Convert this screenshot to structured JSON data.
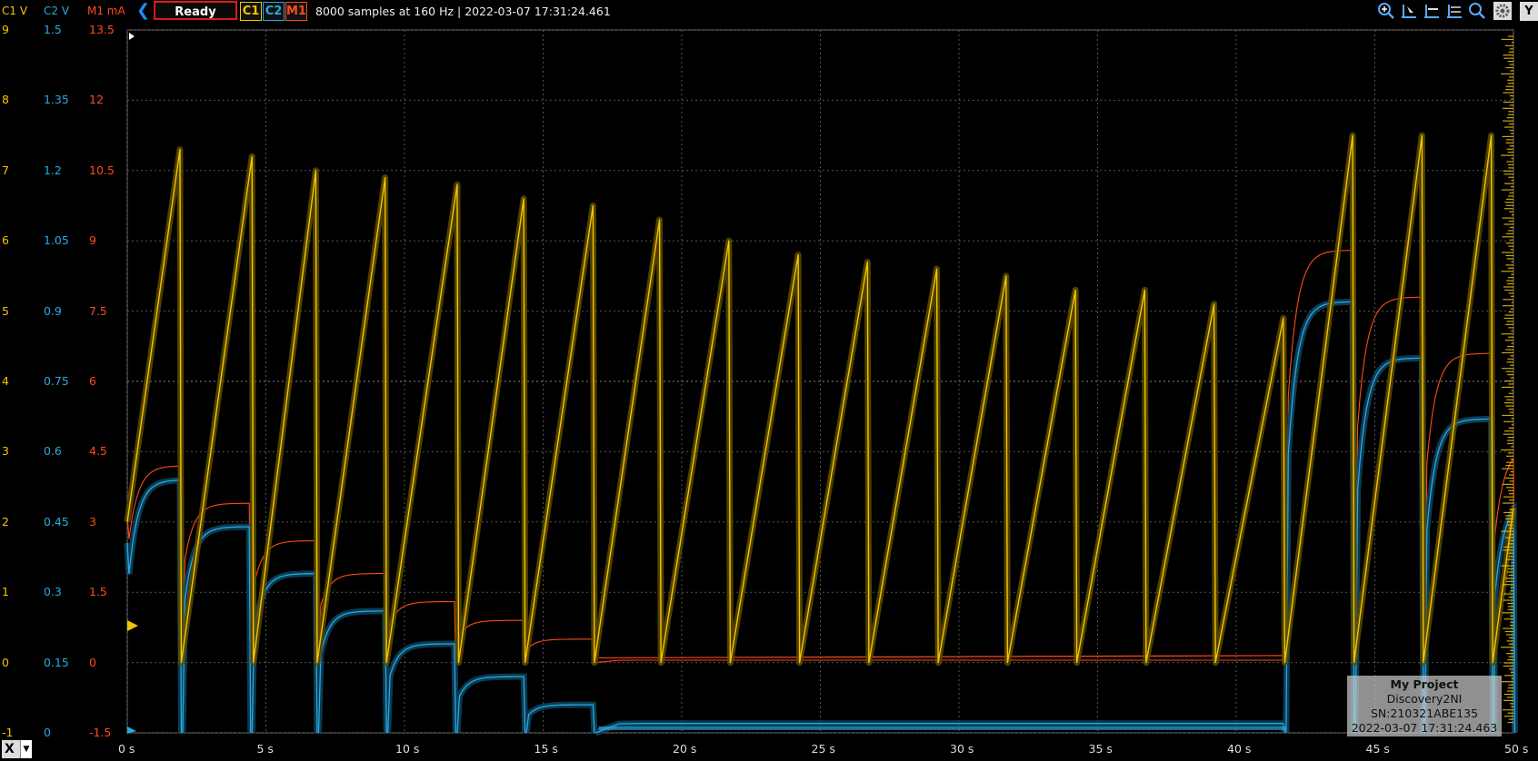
{
  "header": {
    "axis_c1": "C1 V",
    "axis_c2": "C2 V",
    "axis_m1": "M1 mA",
    "status": "Ready",
    "ch_c1": "C1",
    "ch_c2": "C2",
    "ch_m1": "M1",
    "info": "8000 samples at 160 Hz | 2022-03-07 17:31:24.461",
    "y_button": "Y"
  },
  "xaxis_button": "X",
  "device": {
    "project": "My Project",
    "device": "Discovery2NI",
    "serial": "SN:210321ABE135",
    "timestamp": "2022-03-07 17:31:24.463"
  },
  "colors": {
    "c1": "#f5c400",
    "c2": "#2aa8e0",
    "m1": "#ff4a1a",
    "grid": "#555555",
    "background": "#000000"
  },
  "yticks": {
    "c1": [
      "9",
      "8",
      "7",
      "6",
      "5",
      "4",
      "3",
      "2",
      "1",
      "0",
      "-1"
    ],
    "c2": [
      "1.5",
      "1.35",
      "1.2",
      "1.05",
      "0.9",
      "0.75",
      "0.6",
      "0.45",
      "0.3",
      "0.15",
      "0"
    ],
    "m1": [
      "13.5",
      "12",
      "10.5",
      "9",
      "7.5",
      "6",
      "4.5",
      "3",
      "1.5",
      "0",
      "-1.5"
    ]
  },
  "xticks": [
    "0 s",
    "5 s",
    "10 s",
    "15 s",
    "20 s",
    "25 s",
    "30 s",
    "35 s",
    "40 s",
    "45 s",
    "50 s"
  ],
  "chart_data": {
    "type": "line",
    "x_unit": "s",
    "xlim": [
      0,
      50
    ],
    "ylim_c1": [
      -1,
      9
    ],
    "ylim_c2": [
      0,
      1.5
    ],
    "ylim_m1": [
      -1.5,
      13.5
    ],
    "grid": true,
    "c1_sawtooth": {
      "peak_times": [
        1.9,
        4.5,
        6.8,
        9.3,
        11.9,
        14.3,
        16.8,
        19.2,
        21.7,
        24.2,
        26.7,
        29.2,
        31.7,
        34.2,
        36.7,
        39.2,
        41.7,
        44.2,
        46.7,
        49.2
      ],
      "peak_values": [
        7.3,
        7.2,
        7.0,
        6.9,
        6.8,
        6.6,
        6.5,
        6.3,
        6.0,
        5.8,
        5.7,
        5.6,
        5.5,
        5.3,
        5.3,
        5.1,
        4.9,
        7.5,
        7.5,
        7.5
      ],
      "reset_value": 0.0,
      "start_value": 2.0
    },
    "m1_current": {
      "segment_starts": [
        0,
        2.0,
        4.5,
        6.9,
        9.4,
        11.9,
        14.4,
        16.9,
        41.8,
        44.3,
        46.8,
        49.3
      ],
      "segment_end_values": [
        4.2,
        3.4,
        2.6,
        1.9,
        1.3,
        0.9,
        0.5,
        0.05,
        8.8,
        7.8,
        6.6,
        4.6
      ]
    },
    "c2_voltage": {
      "segment_starts": [
        0,
        2.0,
        4.5,
        6.9,
        9.4,
        11.9,
        14.4,
        16.9,
        41.8,
        44.3,
        46.8,
        49.3
      ],
      "segment_end_values": [
        0.54,
        0.44,
        0.34,
        0.26,
        0.19,
        0.12,
        0.06,
        0.02,
        0.92,
        0.8,
        0.67,
        0.5
      ]
    }
  }
}
